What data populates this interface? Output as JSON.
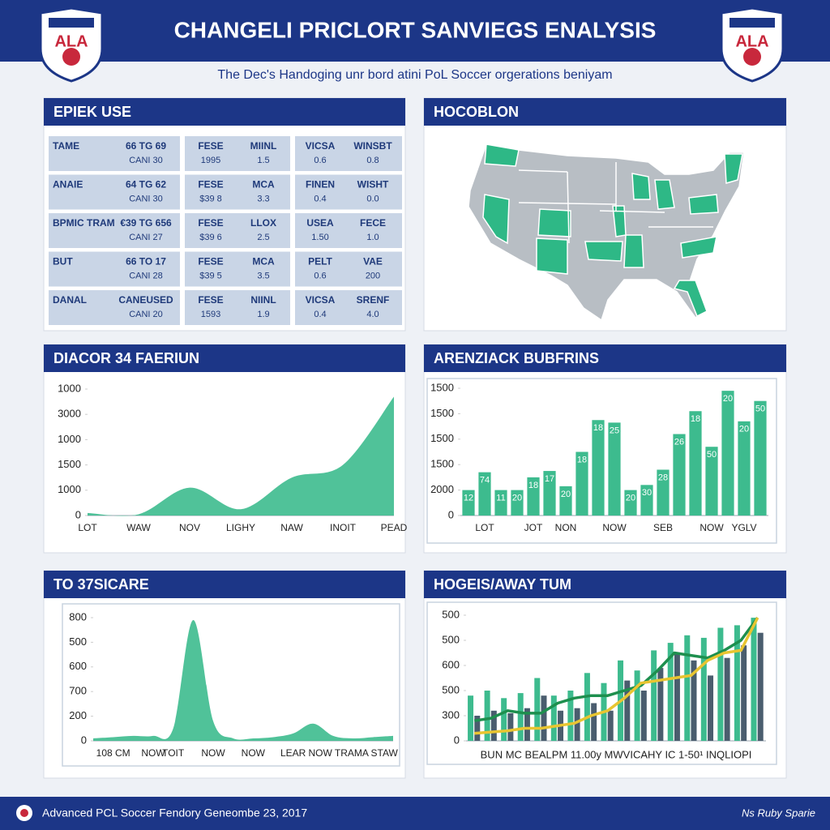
{
  "header": {
    "title": "CHANGELI PRICLORT SANVIEGS ENALYSIS",
    "logo_text": "ALA",
    "subtitle": "The Dec's Handoging unr bord atini PoL Soccer orgerations beniyam"
  },
  "table": {
    "title": "EPIEK USE",
    "rows": [
      [
        "TAME",
        [
          "66 TG 69",
          "CANI 30"
        ],
        [
          "FESE",
          "1995"
        ],
        [
          "MIINL",
          "1.5"
        ],
        [
          "VICSA",
          "0.6"
        ],
        [
          "WINSBT",
          "0.8"
        ]
      ],
      [
        "ANAIE",
        [
          "64 TG 62",
          "CANI 30"
        ],
        [
          "FESE",
          "$39 8"
        ],
        [
          "MCA",
          "3.3"
        ],
        [
          "FINEN",
          "0.4"
        ],
        [
          "WISHT",
          "0.0"
        ]
      ],
      [
        "BPMIC TRAM",
        [
          "€39 TG 656",
          "CANI 27"
        ],
        [
          "FESE",
          "$39 6"
        ],
        [
          "LLOX",
          "2.5"
        ],
        [
          "USEA",
          "1.50"
        ],
        [
          "FECE",
          "1.0"
        ]
      ],
      [
        "BUT",
        [
          "66 TO 17",
          "CANI 28"
        ],
        [
          "FESE",
          "$39 5"
        ],
        [
          "MCA",
          "3.5"
        ],
        [
          "PELT",
          "0.6"
        ],
        [
          "VAE",
          "200"
        ]
      ],
      [
        "DANAL",
        [
          "CANEUSED",
          "CANI 20"
        ],
        [
          "FESE",
          "1593"
        ],
        [
          "NIINL",
          "1.9"
        ],
        [
          "VICSA",
          "0.4"
        ],
        [
          "SRENF",
          "4.0"
        ]
      ]
    ]
  },
  "map": {
    "title": "HOCOBLON"
  },
  "chart_data": [
    {
      "type": "area",
      "title": "DIACOR 34 FAERIUN",
      "color": "#3dbb8e",
      "categories": [
        "LOT",
        "WAW",
        "NOV",
        "LIGHY",
        "NAW",
        "INOIT",
        "PEAD"
      ],
      "values": [
        0.1,
        0.05,
        1.1,
        0.25,
        1.5,
        2.0,
        4.7
      ],
      "ylim": [
        0,
        5
      ],
      "yticks": [
        0,
        {
          "value": 1,
          "label": "1000"
        },
        {
          "value": 2,
          "label": "1500"
        },
        {
          "value": 3,
          "label": "1000"
        },
        {
          "value": 4,
          "label": "3000"
        },
        {
          "value": 5,
          "label": "1000"
        }
      ]
    },
    {
      "type": "bar",
      "title": "ARENZIACK BUBFRINS",
      "color": "#3dbb8e",
      "categories": [
        null,
        "LOT",
        null,
        null,
        "JOT",
        null,
        "NON",
        null,
        null,
        "NOW",
        null,
        null,
        "SEB",
        null,
        null,
        "NOW",
        null,
        "YGLV",
        null
      ],
      "values": [
        1.0,
        1.7,
        1.0,
        1.0,
        1.5,
        1.75,
        1.15,
        2.5,
        3.75,
        3.65,
        1.0,
        1.2,
        1.8,
        3.2,
        4.1,
        2.7,
        4.9,
        3.7,
        4.5
      ],
      "annotations": [
        "12",
        "74",
        "11",
        "20",
        "18",
        "17",
        "20",
        "18",
        "18",
        "25",
        "20",
        "30",
        "28",
        "26",
        "18",
        "50",
        "20",
        "20",
        "50"
      ],
      "ylim": [
        0,
        5
      ],
      "yticks": [
        0,
        {
          "value": 1,
          "label": "2000"
        },
        {
          "value": 2,
          "label": "1500"
        },
        {
          "value": 3,
          "label": "1500"
        },
        {
          "value": 4,
          "label": "1500"
        },
        {
          "value": 5,
          "label": "1500"
        }
      ]
    },
    {
      "type": "area",
      "title": "TO 37SICARE",
      "color": "#3dbb8e",
      "categories": [
        null,
        "108 CM",
        null,
        "NOW",
        "TOIT",
        null,
        "NOW",
        null,
        "NOW",
        null,
        "LEAR",
        null,
        null,
        "NOW TRAMA STAW",
        null,
        null
      ],
      "values": [
        0.1,
        0.15,
        0.2,
        0.2,
        0.5,
        4.9,
        0.8,
        0.1,
        0.1,
        0.15,
        0.3,
        0.7,
        0.2,
        0.1,
        0.15,
        0.2
      ],
      "ylim": [
        0,
        5
      ],
      "yticks": [
        0,
        {
          "value": 1,
          "label": "200"
        },
        {
          "value": 2,
          "label": "700"
        },
        {
          "value": 3,
          "label": "600"
        },
        {
          "value": 4,
          "label": "500"
        },
        {
          "value": 5,
          "label": "800"
        }
      ]
    },
    {
      "type": "bar",
      "title": "HOGEIS/AWAY TUM",
      "xlabel": "BUN MC BEALPM 11.00y MWVICAHY IC 1-50¹ INQLIOPI",
      "series": [
        {
          "color": "#3dbb8e",
          "values": [
            1.8,
            2.0,
            1.7,
            1.9,
            2.5,
            1.8,
            2.0,
            2.7,
            2.3,
            3.2,
            2.8,
            3.6,
            3.9,
            4.2,
            4.1,
            4.5,
            4.6,
            4.9
          ]
        },
        {
          "color": "#4a5d6e",
          "values": [
            1.0,
            1.2,
            1.1,
            1.3,
            1.8,
            1.2,
            1.3,
            1.5,
            1.2,
            2.4,
            2.0,
            2.9,
            3.5,
            3.2,
            2.6,
            3.3,
            3.8,
            4.3
          ]
        },
        {
          "type": "line",
          "color": "#1e8f4e",
          "values": [
            0.8,
            0.9,
            1.2,
            1.1,
            1.1,
            1.5,
            1.7,
            1.8,
            1.8,
            2.0,
            2.2,
            2.8,
            3.5,
            3.4,
            3.3,
            3.6,
            4.0,
            4.9
          ]
        },
        {
          "type": "line",
          "color": "#e8c531",
          "values": [
            0.3,
            0.35,
            0.4,
            0.5,
            0.5,
            0.6,
            0.7,
            1.0,
            1.2,
            1.7,
            2.3,
            2.4,
            2.5,
            2.6,
            3.2,
            3.5,
            3.6,
            4.9
          ]
        }
      ],
      "ylim": [
        0,
        5
      ],
      "yticks": [
        0,
        {
          "value": 1,
          "label": "300"
        },
        {
          "value": 2,
          "label": "500"
        },
        {
          "value": 3,
          "label": "600"
        },
        {
          "value": 4,
          "label": "500"
        },
        {
          "value": 5,
          "label": "500"
        }
      ]
    }
  ],
  "footer": {
    "left": "Advanced PCL Soccer Fendory Geneombe 23, 2017",
    "right": "Ns Ruby Sparie"
  }
}
